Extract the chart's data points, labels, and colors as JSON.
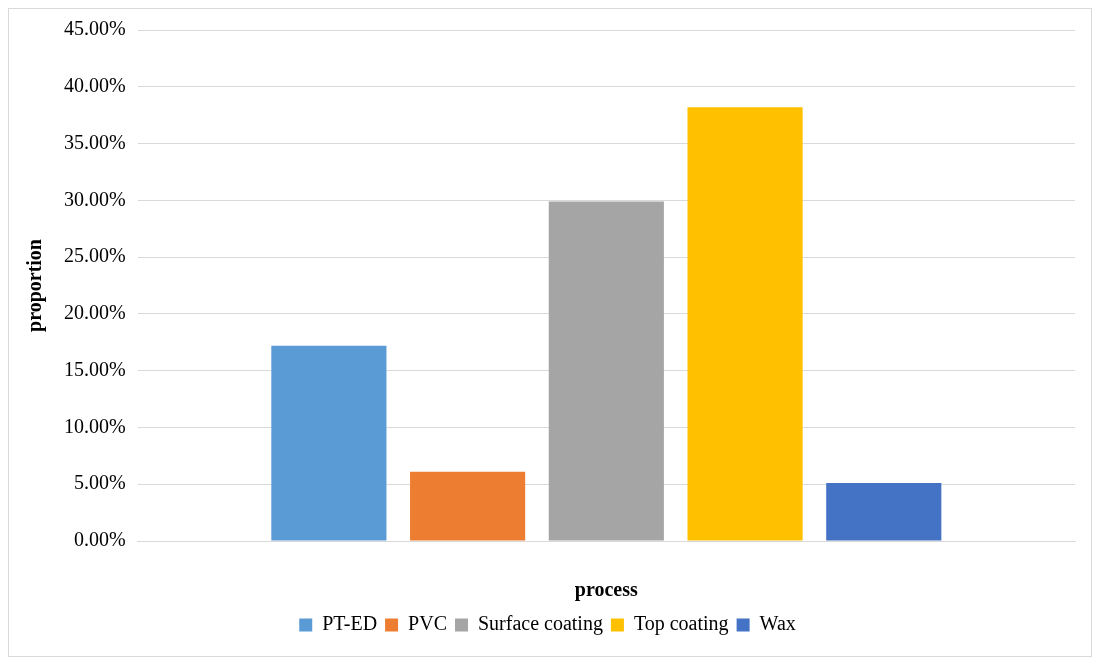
{
  "chart_data": {
    "type": "bar",
    "xlabel": "process",
    "ylabel": "proportion",
    "categories": [
      null
    ],
    "series": [
      {
        "name": "PT-ED",
        "color": "#5b9bd5",
        "values": [
          17.2
        ]
      },
      {
        "name": "PVC",
        "color": "#ed7d31",
        "values": [
          6.1
        ]
      },
      {
        "name": "Surface coating",
        "color": "#a5a5a5",
        "values": [
          29.9
        ]
      },
      {
        "name": "Top coating",
        "color": "#ffc000",
        "values": [
          38.2
        ]
      },
      {
        "name": "Wax",
        "color": "#4472c4",
        "values": [
          5.1
        ]
      }
    ],
    "ylim": [
      0,
      45
    ],
    "yticks": [
      {
        "value": 0,
        "label": "0.00%"
      },
      {
        "value": 5,
        "label": "5.00%"
      },
      {
        "value": 10,
        "label": "10.00%"
      },
      {
        "value": 15,
        "label": "15.00%"
      },
      {
        "value": 20,
        "label": "20.00%"
      },
      {
        "value": 25,
        "label": "25.00%"
      },
      {
        "value": 30,
        "label": "30.00%"
      },
      {
        "value": 35,
        "label": "35.00%"
      },
      {
        "value": 40,
        "label": "40.00%"
      },
      {
        "value": 45,
        "label": "45.00%"
      }
    ],
    "grid": "y",
    "legend": "bottom"
  }
}
